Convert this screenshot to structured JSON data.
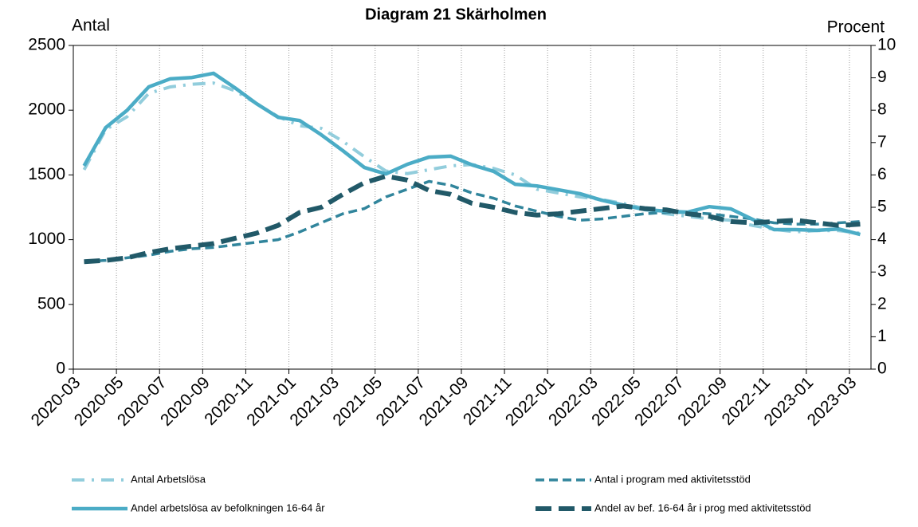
{
  "chart_data": {
    "type": "line",
    "title": "Diagram 21 Skärholmen",
    "y_label": "Antal",
    "y2_label": "Procent",
    "categories": [
      "2020-03",
      null,
      "2020-05",
      null,
      "2020-07",
      null,
      "2020-09",
      null,
      "2020-11",
      null,
      "2021-01",
      null,
      "2021-03",
      null,
      "2021-05",
      null,
      "2021-07",
      null,
      "2021-09",
      null,
      "2021-11",
      null,
      "2022-01",
      null,
      "2022-03",
      null,
      "2022-05",
      null,
      "2022-07",
      null,
      "2022-09",
      null,
      "2022-11",
      null,
      "2023-01",
      null,
      "2023-03"
    ],
    "ylim": [
      0,
      2500
    ],
    "yticks": [
      0,
      500,
      1000,
      1500,
      2000,
      2500
    ],
    "y2lim": [
      0,
      10
    ],
    "y2ticks": [
      0,
      1,
      2,
      3,
      4,
      5,
      6,
      7,
      8,
      9,
      10
    ],
    "grid": true,
    "legend": "bottom",
    "series": [
      {
        "name": "Antal Arbetslösa",
        "color": "#92cddc",
        "style": "dashdot",
        "axis": "y",
        "values": [
          1540,
          1850,
          1950,
          2130,
          2180,
          2200,
          2210,
          2150,
          2050,
          1950,
          1880,
          1860,
          1760,
          1640,
          1530,
          1510,
          1540,
          1570,
          1580,
          1550,
          1500,
          1390,
          1360,
          1330,
          1310,
          1280,
          1240,
          1200,
          1180,
          1160,
          1150,
          1110,
          1080,
          1060,
          1070,
          1070,
          1050
        ]
      },
      {
        "name": "Antal i program med aktivitetsstöd",
        "color": "#31859c",
        "style": "dashed",
        "axis": "y",
        "values": [
          830,
          840,
          860,
          880,
          910,
          930,
          940,
          960,
          980,
          1000,
          1060,
          1130,
          1200,
          1240,
          1330,
          1390,
          1450,
          1420,
          1360,
          1320,
          1260,
          1220,
          1180,
          1150,
          1160,
          1180,
          1200,
          1210,
          1210,
          1200,
          1180,
          1160,
          1130,
          1120,
          1120,
          1130,
          1140
        ]
      },
      {
        "name": "Andel arbetslösa av befolkningen 16-64 år",
        "color": "#4bacc6",
        "style": "solid",
        "axis": "y2",
        "values": [
          6.28,
          7.46,
          8.0,
          8.72,
          8.97,
          9.01,
          9.14,
          8.69,
          8.2,
          7.78,
          7.68,
          7.24,
          6.75,
          6.23,
          6.03,
          6.33,
          6.55,
          6.58,
          6.31,
          6.11,
          5.71,
          5.66,
          5.54,
          5.42,
          5.22,
          5.07,
          4.93,
          4.88,
          4.85,
          5.02,
          4.95,
          4.63,
          4.31,
          4.31,
          4.29,
          4.33,
          4.16
        ]
      },
      {
        "name": "Andel av bef. 16-64 år i prog med aktivitetsstöd",
        "color": "#215968",
        "style": "longdash",
        "axis": "y2",
        "values": [
          3.32,
          3.36,
          3.44,
          3.6,
          3.72,
          3.8,
          3.88,
          4.04,
          4.2,
          4.44,
          4.84,
          5.0,
          5.4,
          5.76,
          5.96,
          5.84,
          5.52,
          5.4,
          5.12,
          5.0,
          4.84,
          4.76,
          4.8,
          4.88,
          4.96,
          5.04,
          4.96,
          4.92,
          4.8,
          4.72,
          4.56,
          4.52,
          4.56,
          4.6,
          4.52,
          4.44,
          4.48
        ]
      }
    ]
  }
}
